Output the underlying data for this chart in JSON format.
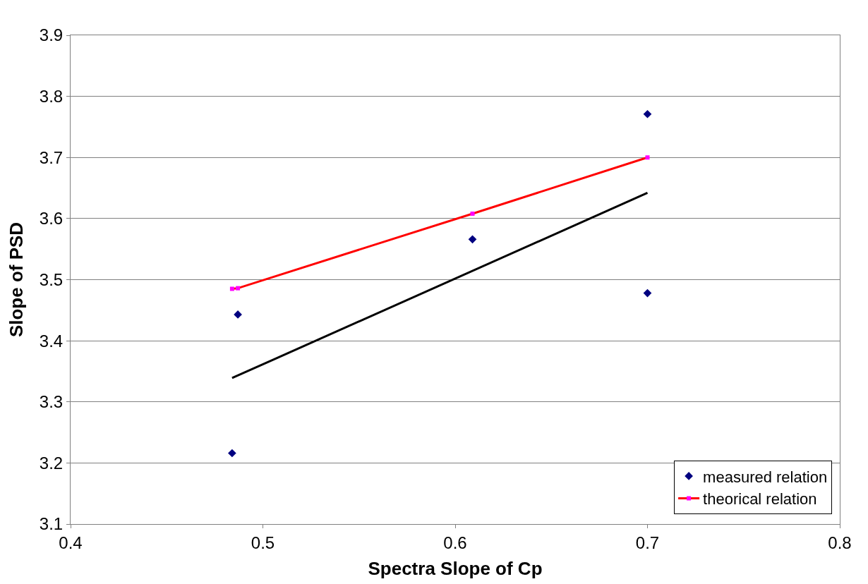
{
  "chart_data": {
    "type": "scatter",
    "xlabel": "Spectra Slope of Cp",
    "ylabel": "Slope of PSD",
    "xlim": [
      0.4,
      0.8
    ],
    "xticks": [
      0.4,
      0.5,
      0.6,
      0.7,
      0.8
    ],
    "ylim": [
      3.1,
      3.9
    ],
    "yticks": [
      3.1,
      3.2,
      3.3,
      3.4,
      3.5,
      3.6,
      3.7,
      3.8,
      3.9
    ],
    "grid": "y",
    "legend": "bottom right",
    "series": [
      {
        "name": "measured relation",
        "marker": "diamond",
        "color": "#000080",
        "x": [
          0.484,
          0.487,
          0.609,
          0.7,
          0.7
        ],
        "values": [
          3.216,
          3.443,
          3.566,
          3.771,
          3.478
        ]
      },
      {
        "name": "theorical relation",
        "type": "line",
        "marker": "square",
        "color": "#ff0000",
        "colors": [
          "#ff00ff",
          "#ff00ff",
          "#ff00ff",
          "#ff00ff"
        ],
        "x": [
          0.484,
          0.487,
          0.609,
          0.7
        ],
        "values": [
          3.485,
          3.486,
          3.608,
          3.7
        ]
      },
      {
        "type": "line",
        "marker": "none",
        "color": "#000000",
        "x": [
          0.484,
          0.7
        ],
        "values": [
          3.339,
          3.642
        ]
      }
    ]
  }
}
